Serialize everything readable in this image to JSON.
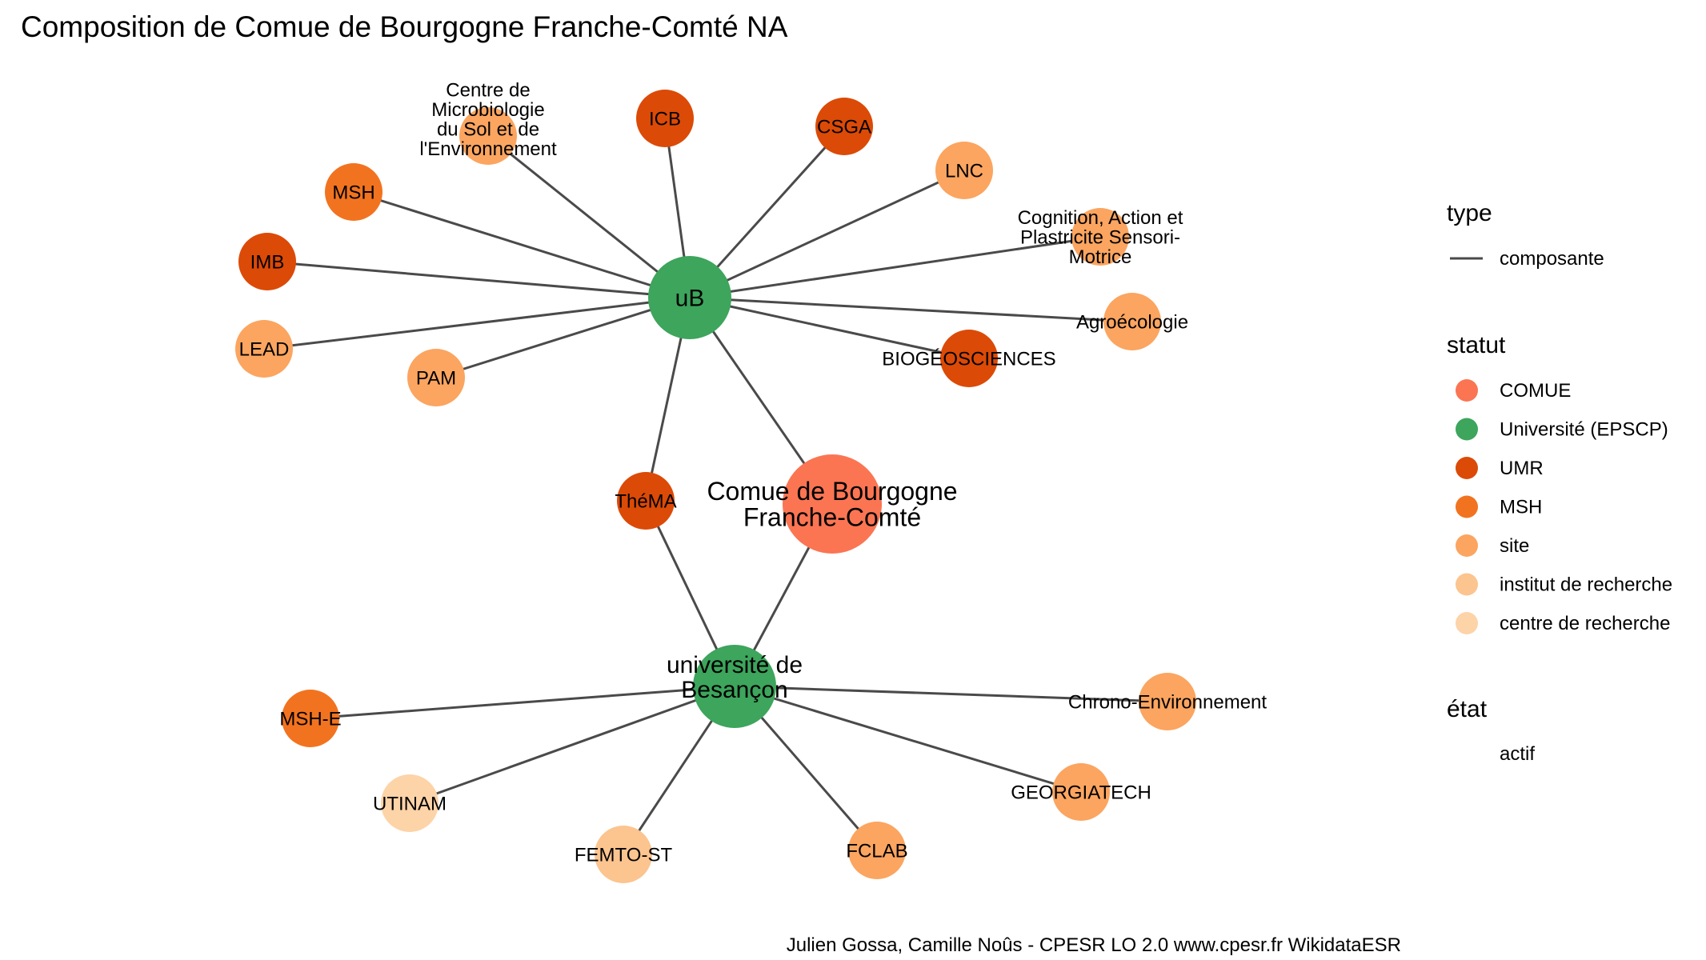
{
  "title": "Composition de Comue de Bourgogne Franche-Comté NA",
  "caption": "Julien Gossa, Camille Noûs - CPESR LO 2.0 www.cpesr.fr WikidataESR",
  "colors": {
    "COMUE": "#FB7553",
    "Université (EPSCP)": "#3DA55C",
    "UMR": "#DC4A07",
    "MSH": "#F2731F",
    "site": "#FBA560",
    "institut de recherche": "#FCC48F",
    "centre de recherche": "#FDD3A8",
    "edge": "#4a4a4a"
  },
  "nodes": [
    {
      "id": "comue",
      "label": "Comue de Bourgogne\nFranche-Comté",
      "statut": "COMUE"
    },
    {
      "id": "ub",
      "label": "uB",
      "statut": "Université (EPSCP)"
    },
    {
      "id": "ubesancon",
      "label": "université de\nBesançon",
      "statut": "Université (EPSCP)"
    },
    {
      "id": "thema",
      "label": "ThéMA",
      "statut": "UMR"
    },
    {
      "id": "icb",
      "label": "ICB",
      "statut": "UMR"
    },
    {
      "id": "csga",
      "label": "CSGA",
      "statut": "UMR"
    },
    {
      "id": "imb",
      "label": "IMB",
      "statut": "UMR"
    },
    {
      "id": "biogeo",
      "label": "BIOGÉOSCIENCES",
      "statut": "UMR"
    },
    {
      "id": "msh",
      "label": "MSH",
      "statut": "MSH"
    },
    {
      "id": "mshe",
      "label": "MSH-E",
      "statut": "MSH"
    },
    {
      "id": "cmse",
      "label": "Centre de\nMicrobiologie\ndu Sol et de\nl'Environnement",
      "statut": "site"
    },
    {
      "id": "lnc",
      "label": "LNC",
      "statut": "site"
    },
    {
      "id": "capsm",
      "label": "Cognition, Action et\nPlastricite Sensori-\nMotrice",
      "statut": "site"
    },
    {
      "id": "agro",
      "label": "Agroécologie",
      "statut": "site"
    },
    {
      "id": "lead",
      "label": "LEAD",
      "statut": "site"
    },
    {
      "id": "pam",
      "label": "PAM",
      "statut": "site"
    },
    {
      "id": "chrono",
      "label": "Chrono-Environnement",
      "statut": "site"
    },
    {
      "id": "georgia",
      "label": "GEORGIATECH",
      "statut": "site"
    },
    {
      "id": "fclab",
      "label": "FCLAB",
      "statut": "site"
    },
    {
      "id": "femto",
      "label": "FEMTO-ST",
      "statut": "institut de recherche"
    },
    {
      "id": "utinam",
      "label": "UTINAM",
      "statut": "centre de recherche"
    }
  ],
  "edges": [
    {
      "from": "ub",
      "to": "comue",
      "type": "composante"
    },
    {
      "from": "ubesancon",
      "to": "comue",
      "type": "composante"
    },
    {
      "from": "ub",
      "to": "thema",
      "type": "composante"
    },
    {
      "from": "ubesancon",
      "to": "thema",
      "type": "composante"
    },
    {
      "from": "ub",
      "to": "icb",
      "type": "composante"
    },
    {
      "from": "ub",
      "to": "csga",
      "type": "composante"
    },
    {
      "from": "ub",
      "to": "lnc",
      "type": "composante"
    },
    {
      "from": "ub",
      "to": "capsm",
      "type": "composante"
    },
    {
      "from": "ub",
      "to": "agro",
      "type": "composante"
    },
    {
      "from": "ub",
      "to": "biogeo",
      "type": "composante"
    },
    {
      "from": "ub",
      "to": "pam",
      "type": "composante"
    },
    {
      "from": "ub",
      "to": "lead",
      "type": "composante"
    },
    {
      "from": "ub",
      "to": "imb",
      "type": "composante"
    },
    {
      "from": "ub",
      "to": "msh",
      "type": "composante"
    },
    {
      "from": "ub",
      "to": "cmse",
      "type": "composante"
    },
    {
      "from": "ubesancon",
      "to": "mshe",
      "type": "composante"
    },
    {
      "from": "ubesancon",
      "to": "utinam",
      "type": "composante"
    },
    {
      "from": "ubesancon",
      "to": "femto",
      "type": "composante"
    },
    {
      "from": "ubesancon",
      "to": "fclab",
      "type": "composante"
    },
    {
      "from": "ubesancon",
      "to": "georgia",
      "type": "composante"
    },
    {
      "from": "ubesancon",
      "to": "chrono",
      "type": "composante"
    }
  ],
  "legend": {
    "type": {
      "title": "type",
      "items": [
        {
          "label": "composante",
          "icon": "line"
        }
      ]
    },
    "statut": {
      "title": "statut",
      "items": [
        {
          "label": "COMUE",
          "color": "#FB7553"
        },
        {
          "label": "Université (EPSCP)",
          "color": "#3DA55C"
        },
        {
          "label": "UMR",
          "color": "#DC4A07"
        },
        {
          "label": "MSH",
          "color": "#F2731F"
        },
        {
          "label": "site",
          "color": "#FBA560"
        },
        {
          "label": "institut de recherche",
          "color": "#FCC48F"
        },
        {
          "label": "centre de recherche",
          "color": "#FDD3A8"
        }
      ]
    },
    "etat": {
      "title": "état",
      "items": [
        {
          "label": "actif"
        }
      ]
    }
  }
}
